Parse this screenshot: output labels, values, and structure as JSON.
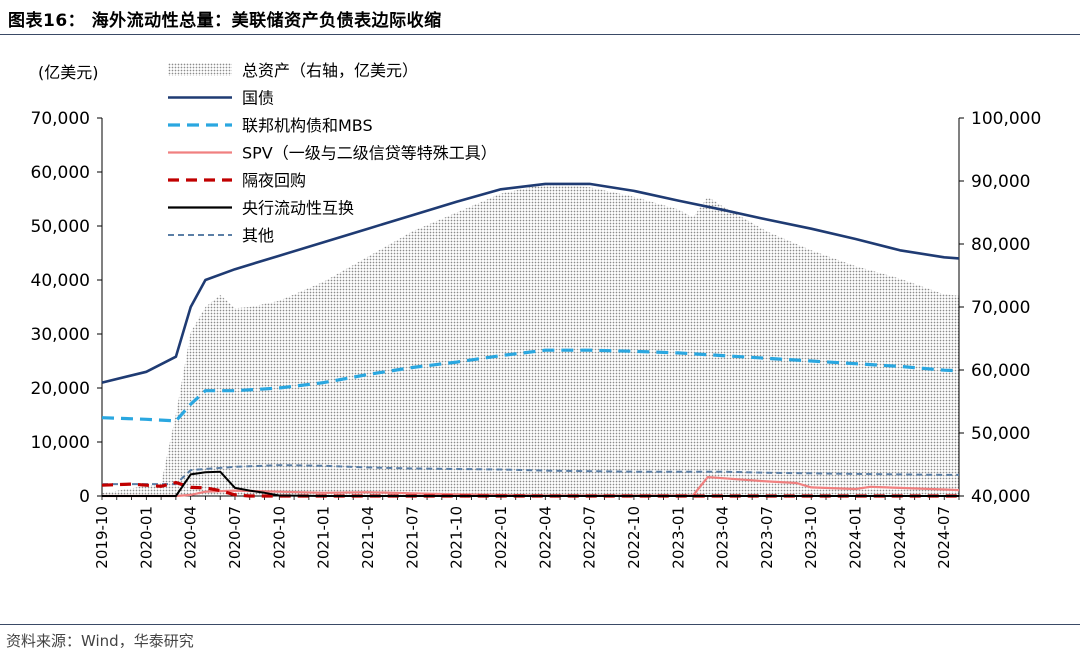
{
  "figure": {
    "title": "图表16：  海外流动性总量：美联储资产负债表边际收缩",
    "source": "资料来源：Wind，华泰研究"
  },
  "chart_data": {
    "type": "line",
    "left_axis_label": "(亿美元)",
    "ylim_left": [
      0,
      70000
    ],
    "ylim_right": [
      40000,
      100000
    ],
    "yticks_left": [
      "0",
      "10,000",
      "20,000",
      "30,000",
      "40,000",
      "50,000",
      "60,000",
      "70,000"
    ],
    "yticks_right": [
      "40,000",
      "50,000",
      "60,000",
      "70,000",
      "80,000",
      "90,000",
      "100,000"
    ],
    "x_ticks": [
      "2019-10",
      "2020-01",
      "2020-04",
      "2020-07",
      "2020-10",
      "2021-01",
      "2021-04",
      "2021-07",
      "2021-10",
      "2022-01",
      "2022-04",
      "2022-07",
      "2022-10",
      "2023-01",
      "2023-04",
      "2023-07",
      "2023-10",
      "2024-01",
      "2024-04",
      "2024-07"
    ],
    "legend_position": "top-left",
    "series": [
      {
        "name": "总资产（右轴，亿美元）",
        "axis": "right",
        "style": "area-dotted",
        "color": "#9a9a9a",
        "points": [
          [
            "2019-10",
            40450
          ],
          [
            "2020-02",
            42000
          ],
          [
            "2020-03",
            53000
          ],
          [
            "2020-04",
            66000
          ],
          [
            "2020-05",
            70000
          ],
          [
            "2020-06",
            71900
          ],
          [
            "2020-07",
            69800
          ],
          [
            "2020-08",
            70000
          ],
          [
            "2020-10",
            71000
          ],
          [
            "2021-01",
            74000
          ],
          [
            "2021-04",
            78000
          ],
          [
            "2021-07",
            82000
          ],
          [
            "2021-10",
            85000
          ],
          [
            "2022-01",
            88000
          ],
          [
            "2022-04",
            89500
          ],
          [
            "2022-07",
            89000
          ],
          [
            "2022-10",
            87500
          ],
          [
            "2023-01",
            85500
          ],
          [
            "2023-02",
            84200
          ],
          [
            "2023-03",
            87500
          ],
          [
            "2023-04",
            86000
          ],
          [
            "2023-07",
            82000
          ],
          [
            "2023-10",
            79000
          ],
          [
            "2024-01",
            76500
          ],
          [
            "2024-04",
            74500
          ],
          [
            "2024-07",
            72000
          ],
          [
            "2024-08",
            71800
          ]
        ]
      },
      {
        "name": "国债",
        "axis": "left",
        "style": "solid",
        "color": "#1f3b73",
        "points": [
          [
            "2019-10",
            21000
          ],
          [
            "2020-01",
            23000
          ],
          [
            "2020-03",
            25800
          ],
          [
            "2020-04",
            35000
          ],
          [
            "2020-05",
            40000
          ],
          [
            "2020-07",
            42000
          ],
          [
            "2020-10",
            44500
          ],
          [
            "2021-01",
            47000
          ],
          [
            "2021-04",
            49500
          ],
          [
            "2021-07",
            52000
          ],
          [
            "2021-10",
            54500
          ],
          [
            "2022-01",
            56800
          ],
          [
            "2022-04",
            57800
          ],
          [
            "2022-07",
            57800
          ],
          [
            "2022-10",
            56500
          ],
          [
            "2023-01",
            54700
          ],
          [
            "2023-04",
            53000
          ],
          [
            "2023-07",
            51200
          ],
          [
            "2023-10",
            49500
          ],
          [
            "2024-01",
            47600
          ],
          [
            "2024-04",
            45500
          ],
          [
            "2024-07",
            44200
          ],
          [
            "2024-08",
            44000
          ]
        ]
      },
      {
        "name": "联邦机构债和MBS",
        "axis": "left",
        "style": "dashed",
        "color": "#2aa7e0",
        "points": [
          [
            "2019-10",
            14500
          ],
          [
            "2020-01",
            14200
          ],
          [
            "2020-03",
            13900
          ],
          [
            "2020-04",
            17000
          ],
          [
            "2020-05",
            19500
          ],
          [
            "2020-07",
            19500
          ],
          [
            "2020-10",
            20000
          ],
          [
            "2021-01",
            21000
          ],
          [
            "2021-04",
            22500
          ],
          [
            "2021-07",
            23800
          ],
          [
            "2021-10",
            24800
          ],
          [
            "2022-01",
            26000
          ],
          [
            "2022-04",
            27000
          ],
          [
            "2022-07",
            27000
          ],
          [
            "2022-10",
            26800
          ],
          [
            "2023-01",
            26500
          ],
          [
            "2023-04",
            26000
          ],
          [
            "2023-07",
            25500
          ],
          [
            "2023-10",
            25000
          ],
          [
            "2024-01",
            24500
          ],
          [
            "2024-04",
            24000
          ],
          [
            "2024-07",
            23300
          ],
          [
            "2024-08",
            23200
          ]
        ]
      },
      {
        "name": "SPV（一级与二级信贷等特殊工具）",
        "axis": "left",
        "style": "solid",
        "color": "#f08080",
        "points": [
          [
            "2019-10",
            0
          ],
          [
            "2020-03",
            0
          ],
          [
            "2020-04",
            200
          ],
          [
            "2020-05",
            800
          ],
          [
            "2020-07",
            1000
          ],
          [
            "2020-10",
            800
          ],
          [
            "2021-01",
            600
          ],
          [
            "2021-04",
            700
          ],
          [
            "2021-07",
            500
          ],
          [
            "2021-10",
            300
          ],
          [
            "2022-01",
            200
          ],
          [
            "2022-04",
            100
          ],
          [
            "2022-07",
            100
          ],
          [
            "2023-01",
            100
          ],
          [
            "2023-02",
            100
          ],
          [
            "2023-03",
            3500
          ],
          [
            "2023-04",
            3300
          ],
          [
            "2023-07",
            2700
          ],
          [
            "2023-09",
            2400
          ],
          [
            "2023-10",
            1600
          ],
          [
            "2024-01",
            1300
          ],
          [
            "2024-02",
            1700
          ],
          [
            "2024-04",
            1500
          ],
          [
            "2024-07",
            1200
          ],
          [
            "2024-08",
            1100
          ]
        ]
      },
      {
        "name": "隔夜回购",
        "axis": "left",
        "style": "dashed",
        "color": "#c00000",
        "points": [
          [
            "2019-10",
            2000
          ],
          [
            "2019-12",
            2200
          ],
          [
            "2020-01",
            2000
          ],
          [
            "2020-02",
            1800
          ],
          [
            "2020-03",
            2500
          ],
          [
            "2020-04",
            1600
          ],
          [
            "2020-05",
            1500
          ],
          [
            "2020-06",
            1000
          ],
          [
            "2020-07",
            200
          ],
          [
            "2020-08",
            0
          ],
          [
            "2024-08",
            0
          ]
        ]
      },
      {
        "name": "央行流动性互换",
        "axis": "left",
        "style": "solid",
        "color": "#000000",
        "points": [
          [
            "2019-10",
            0
          ],
          [
            "2020-03",
            0
          ],
          [
            "2020-04",
            4000
          ],
          [
            "2020-05",
            4400
          ],
          [
            "2020-06",
            4500
          ],
          [
            "2020-07",
            1500
          ],
          [
            "2020-08",
            1000
          ],
          [
            "2020-09",
            600
          ],
          [
            "2020-10",
            100
          ],
          [
            "2021-01",
            0
          ],
          [
            "2024-08",
            0
          ]
        ]
      },
      {
        "name": "其他",
        "axis": "left",
        "style": "dashed",
        "color": "#5b7fa6",
        "points": [
          [
            "2019-10",
            2200
          ],
          [
            "2020-03",
            2200
          ],
          [
            "2020-04",
            4800
          ],
          [
            "2020-07",
            5400
          ],
          [
            "2020-10",
            5700
          ],
          [
            "2021-01",
            5600
          ],
          [
            "2021-04",
            5300
          ],
          [
            "2021-07",
            5100
          ],
          [
            "2021-10",
            5000
          ],
          [
            "2022-01",
            4900
          ],
          [
            "2022-04",
            4700
          ],
          [
            "2022-07",
            4600
          ],
          [
            "2022-10",
            4500
          ],
          [
            "2023-01",
            4500
          ],
          [
            "2023-04",
            4500
          ],
          [
            "2023-07",
            4300
          ],
          [
            "2023-10",
            4200
          ],
          [
            "2024-01",
            4100
          ],
          [
            "2024-04",
            4000
          ],
          [
            "2024-07",
            3900
          ],
          [
            "2024-08",
            3900
          ]
        ]
      }
    ]
  }
}
